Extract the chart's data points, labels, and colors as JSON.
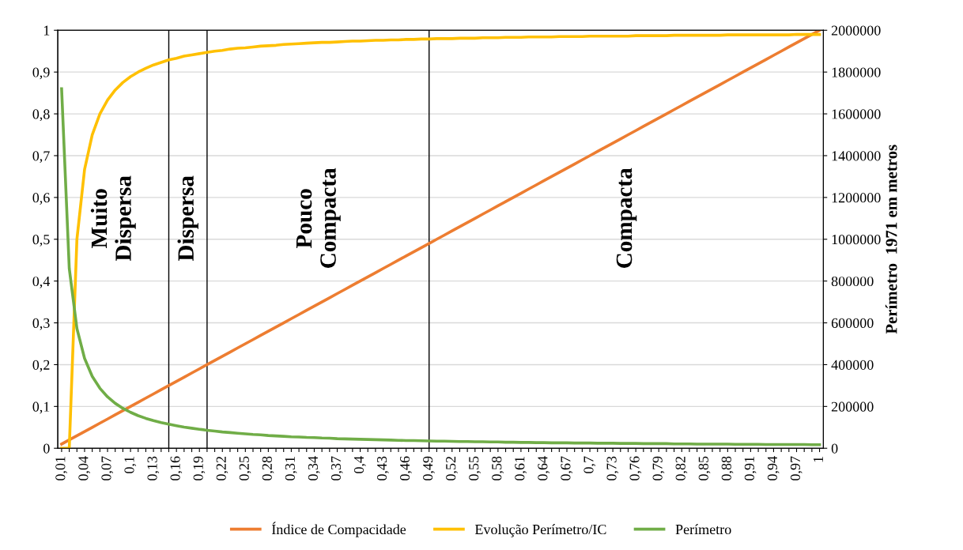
{
  "chart_data": {
    "type": "line",
    "x": [
      0.01,
      0.02,
      0.03,
      0.04,
      0.05,
      0.06,
      0.07,
      0.08,
      0.09,
      0.1,
      0.11,
      0.12,
      0.13,
      0.14,
      0.15,
      0.16,
      0.17,
      0.18,
      0.19,
      0.2,
      0.21,
      0.22,
      0.23,
      0.24,
      0.25,
      0.26,
      0.27,
      0.28,
      0.29,
      0.3,
      0.31,
      0.32,
      0.33,
      0.34,
      0.35,
      0.36,
      0.37,
      0.38,
      0.39,
      0.4,
      0.41,
      0.42,
      0.43,
      0.44,
      0.45,
      0.46,
      0.47,
      0.48,
      0.49,
      0.5,
      0.51,
      0.52,
      0.53,
      0.54,
      0.55,
      0.56,
      0.57,
      0.58,
      0.59,
      0.6,
      0.61,
      0.62,
      0.63,
      0.64,
      0.65,
      0.66,
      0.67,
      0.68,
      0.69,
      0.7,
      0.71,
      0.72,
      0.73,
      0.74,
      0.75,
      0.76,
      0.77,
      0.78,
      0.79,
      0.8,
      0.81,
      0.82,
      0.83,
      0.84,
      0.85,
      0.86,
      0.87,
      0.88,
      0.89,
      0.9,
      0.91,
      0.92,
      0.93,
      0.94,
      0.95,
      0.96,
      0.97,
      0.98,
      0.99,
      1.0
    ],
    "series": [
      {
        "name": "Índice de Compacidade",
        "color": "#ed7d31",
        "values": [
          0.01,
          0.02,
          0.03,
          0.04,
          0.05,
          0.06,
          0.07,
          0.08,
          0.09,
          0.1,
          0.11,
          0.12,
          0.13,
          0.14,
          0.15,
          0.16,
          0.17,
          0.18,
          0.19,
          0.2,
          0.21,
          0.22,
          0.23,
          0.24,
          0.25,
          0.26,
          0.27,
          0.28,
          0.29,
          0.3,
          0.31,
          0.32,
          0.33,
          0.34,
          0.35,
          0.36,
          0.37,
          0.38,
          0.39,
          0.4,
          0.41,
          0.42,
          0.43,
          0.44,
          0.45,
          0.46,
          0.47,
          0.48,
          0.49,
          0.5,
          0.51,
          0.52,
          0.53,
          0.54,
          0.55,
          0.56,
          0.57,
          0.58,
          0.59,
          0.6,
          0.61,
          0.62,
          0.63,
          0.64,
          0.65,
          0.66,
          0.67,
          0.68,
          0.69,
          0.7,
          0.71,
          0.72,
          0.73,
          0.74,
          0.75,
          0.76,
          0.77,
          0.78,
          0.79,
          0.8,
          0.81,
          0.82,
          0.83,
          0.84,
          0.85,
          0.86,
          0.87,
          0.88,
          0.89,
          0.9,
          0.91,
          0.92,
          0.93,
          0.94,
          0.95,
          0.96,
          0.97,
          0.98,
          0.99,
          1.0
        ]
      },
      {
        "name": "Evolução Perímetro/IC",
        "color": "#ffc000",
        "values": [
          0,
          0,
          0.5,
          0.667,
          0.75,
          0.8,
          0.833,
          0.857,
          0.875,
          0.889,
          0.9,
          0.909,
          0.917,
          0.923,
          0.929,
          0.933,
          0.938,
          0.941,
          0.944,
          0.947,
          0.95,
          0.952,
          0.955,
          0.957,
          0.958,
          0.96,
          0.962,
          0.963,
          0.964,
          0.966,
          0.967,
          0.968,
          0.969,
          0.97,
          0.971,
          0.971,
          0.972,
          0.973,
          0.974,
          0.974,
          0.975,
          0.976,
          0.976,
          0.977,
          0.977,
          0.978,
          0.978,
          0.979,
          0.979,
          0.98,
          0.98,
          0.98,
          0.981,
          0.981,
          0.981,
          0.982,
          0.982,
          0.982,
          0.983,
          0.983,
          0.983,
          0.984,
          0.984,
          0.984,
          0.984,
          0.985,
          0.985,
          0.985,
          0.985,
          0.986,
          0.986,
          0.986,
          0.986,
          0.986,
          0.986,
          0.987,
          0.987,
          0.987,
          0.987,
          0.987,
          0.988,
          0.988,
          0.988,
          0.988,
          0.988,
          0.988,
          0.988,
          0.989,
          0.989,
          0.989,
          0.989,
          0.989,
          0.989,
          0.989,
          0.989,
          0.989,
          0.99,
          0.99,
          0.99,
          0.99
        ]
      },
      {
        "name": "Perímetro",
        "color": "#70ad47",
        "axis": "y2",
        "values": [
          1720000,
          860000,
          573000,
          430000,
          344000,
          287000,
          246000,
          215000,
          191000,
          172000,
          156000,
          143000,
          132000,
          123000,
          115000,
          108000,
          101000,
          96000,
          91000,
          86000,
          82000,
          78000,
          75000,
          72000,
          69000,
          66000,
          64000,
          61000,
          59000,
          57000,
          55000,
          54000,
          52000,
          51000,
          49000,
          48000,
          46000,
          45000,
          44000,
          43000,
          42000,
          41000,
          40000,
          39000,
          38000,
          37000,
          37000,
          36000,
          35000,
          34000,
          34000,
          33000,
          32000,
          32000,
          31000,
          31000,
          30000,
          30000,
          29000,
          29000,
          28000,
          28000,
          27000,
          27000,
          26000,
          26000,
          26000,
          25000,
          25000,
          25000,
          24000,
          24000,
          24000,
          23000,
          23000,
          23000,
          22000,
          22000,
          22000,
          22000,
          21000,
          21000,
          21000,
          20000,
          20000,
          20000,
          20000,
          20000,
          19000,
          19000,
          19000,
          19000,
          18000,
          18000,
          18000,
          18000,
          18000,
          18000,
          17000,
          17000
        ]
      }
    ],
    "xlim": [
      0.005,
      1.005
    ],
    "xticks": [
      {
        "value": 0.01,
        "label": "0,01"
      },
      {
        "value": 0.02,
        "label": null
      },
      {
        "value": 0.03,
        "label": null
      },
      {
        "value": 0.04,
        "label": "0,04"
      },
      {
        "value": 0.05,
        "label": null
      },
      {
        "value": 0.06,
        "label": null
      },
      {
        "value": 0.07,
        "label": "0,07"
      },
      {
        "value": 0.08,
        "label": null
      },
      {
        "value": 0.09,
        "label": null
      },
      {
        "value": 0.1,
        "label": "0,1"
      },
      {
        "value": 0.11,
        "label": null
      },
      {
        "value": 0.12,
        "label": null
      },
      {
        "value": 0.13,
        "label": "0,13"
      },
      {
        "value": 0.14,
        "label": null
      },
      {
        "value": 0.15,
        "label": null
      },
      {
        "value": 0.16,
        "label": "0,16"
      },
      {
        "value": 0.17,
        "label": null
      },
      {
        "value": 0.18,
        "label": null
      },
      {
        "value": 0.19,
        "label": "0,19"
      },
      {
        "value": 0.2,
        "label": null
      },
      {
        "value": 0.21,
        "label": null
      },
      {
        "value": 0.22,
        "label": "0,22"
      },
      {
        "value": 0.23,
        "label": null
      },
      {
        "value": 0.24,
        "label": null
      },
      {
        "value": 0.25,
        "label": "0,25"
      },
      {
        "value": 0.26,
        "label": null
      },
      {
        "value": 0.27,
        "label": null
      },
      {
        "value": 0.28,
        "label": "0,28"
      },
      {
        "value": 0.29,
        "label": null
      },
      {
        "value": 0.3,
        "label": null
      },
      {
        "value": 0.31,
        "label": "0,31"
      },
      {
        "value": 0.32,
        "label": null
      },
      {
        "value": 0.33,
        "label": null
      },
      {
        "value": 0.34,
        "label": "0,34"
      },
      {
        "value": 0.35,
        "label": null
      },
      {
        "value": 0.36,
        "label": null
      },
      {
        "value": 0.37,
        "label": "0,37"
      },
      {
        "value": 0.38,
        "label": null
      },
      {
        "value": 0.39,
        "label": null
      },
      {
        "value": 0.4,
        "label": "0,4"
      },
      {
        "value": 0.41,
        "label": null
      },
      {
        "value": 0.42,
        "label": null
      },
      {
        "value": 0.43,
        "label": "0,43"
      },
      {
        "value": 0.44,
        "label": null
      },
      {
        "value": 0.45,
        "label": null
      },
      {
        "value": 0.46,
        "label": "0,46"
      },
      {
        "value": 0.47,
        "label": null
      },
      {
        "value": 0.48,
        "label": null
      },
      {
        "value": 0.49,
        "label": "0,49"
      },
      {
        "value": 0.5,
        "label": null
      },
      {
        "value": 0.51,
        "label": null
      },
      {
        "value": 0.52,
        "label": "0,52"
      },
      {
        "value": 0.53,
        "label": null
      },
      {
        "value": 0.54,
        "label": null
      },
      {
        "value": 0.55,
        "label": "0,55"
      },
      {
        "value": 0.56,
        "label": null
      },
      {
        "value": 0.57,
        "label": null
      },
      {
        "value": 0.58,
        "label": "0,58"
      },
      {
        "value": 0.59,
        "label": null
      },
      {
        "value": 0.6,
        "label": null
      },
      {
        "value": 0.61,
        "label": "0,61"
      },
      {
        "value": 0.62,
        "label": null
      },
      {
        "value": 0.63,
        "label": null
      },
      {
        "value": 0.64,
        "label": "0,64"
      },
      {
        "value": 0.65,
        "label": null
      },
      {
        "value": 0.66,
        "label": null
      },
      {
        "value": 0.67,
        "label": "0,67"
      },
      {
        "value": 0.68,
        "label": null
      },
      {
        "value": 0.69,
        "label": null
      },
      {
        "value": 0.7,
        "label": "0,7"
      },
      {
        "value": 0.71,
        "label": null
      },
      {
        "value": 0.72,
        "label": null
      },
      {
        "value": 0.73,
        "label": "0,73"
      },
      {
        "value": 0.74,
        "label": null
      },
      {
        "value": 0.75,
        "label": null
      },
      {
        "value": 0.76,
        "label": "0,76"
      },
      {
        "value": 0.77,
        "label": null
      },
      {
        "value": 0.78,
        "label": null
      },
      {
        "value": 0.79,
        "label": "0,79"
      },
      {
        "value": 0.8,
        "label": null
      },
      {
        "value": 0.81,
        "label": null
      },
      {
        "value": 0.82,
        "label": "0,82"
      },
      {
        "value": 0.83,
        "label": null
      },
      {
        "value": 0.84,
        "label": null
      },
      {
        "value": 0.85,
        "label": "0,85"
      },
      {
        "value": 0.86,
        "label": null
      },
      {
        "value": 0.87,
        "label": null
      },
      {
        "value": 0.88,
        "label": "0,88"
      },
      {
        "value": 0.89,
        "label": null
      },
      {
        "value": 0.9,
        "label": null
      },
      {
        "value": 0.91,
        "label": "0,91"
      },
      {
        "value": 0.92,
        "label": null
      },
      {
        "value": 0.93,
        "label": null
      },
      {
        "value": 0.94,
        "label": "0,94"
      },
      {
        "value": 0.95,
        "label": null
      },
      {
        "value": 0.96,
        "label": null
      },
      {
        "value": 0.97,
        "label": "0,97"
      },
      {
        "value": 0.98,
        "label": null
      },
      {
        "value": 0.99,
        "label": null
      },
      {
        "value": 1.0,
        "label": "1"
      }
    ],
    "ylim": [
      0,
      1
    ],
    "yticks": [
      0,
      {
        "value": 0.1,
        "label": "0,1"
      },
      {
        "value": 0.2,
        "label": "0,2"
      },
      {
        "value": 0.3,
        "label": "0,3"
      },
      {
        "value": 0.4,
        "label": "0,4"
      },
      {
        "value": 0.5,
        "label": "0,5"
      },
      {
        "value": 0.6,
        "label": "0,6"
      },
      {
        "value": 0.7,
        "label": "0,7"
      },
      {
        "value": 0.8,
        "label": "0,8"
      },
      {
        "value": 0.9,
        "label": "0,9"
      },
      1
    ],
    "y2lim": [
      0,
      2000000
    ],
    "y2ticks": [
      0,
      200000,
      400000,
      600000,
      800000,
      1000000,
      1200000,
      1400000,
      1600000,
      1800000,
      2000000
    ],
    "y2label": "Perímetro  1971 em metros",
    "ref_lines": [
      {
        "axis": "x",
        "value": 0.15,
        "color": "#000000"
      },
      {
        "axis": "x",
        "value": 0.2,
        "color": "#000000"
      },
      {
        "axis": "x",
        "value": 0.49,
        "color": "#000000"
      }
    ],
    "annotations": [
      "Muito\nDispersa",
      "Dispersa",
      "Pouco\nCompacta",
      "Compacta"
    ],
    "grid": "y",
    "legend": "bottom",
    "marker": "none",
    "line_style": "solid"
  }
}
